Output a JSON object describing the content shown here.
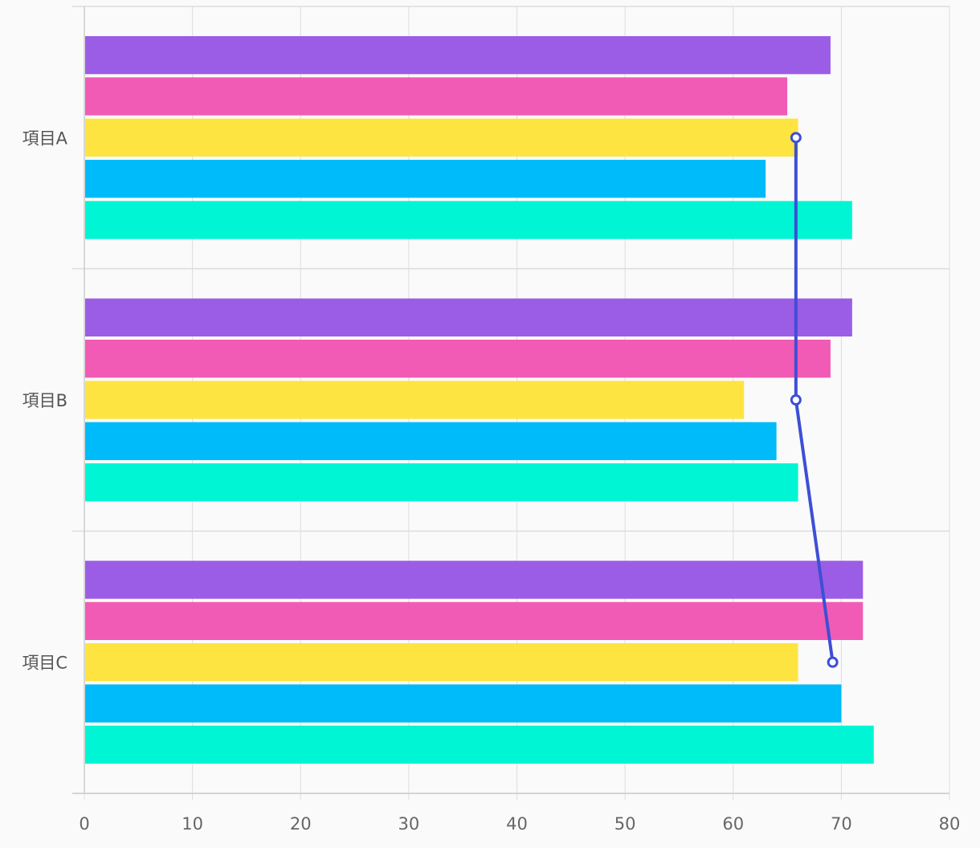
{
  "chart_data": {
    "type": "bar",
    "orientation": "horizontal",
    "categories": [
      "項目A",
      "項目B",
      "項目C"
    ],
    "series": [
      {
        "color": "#9b5de5",
        "values": [
          69,
          71,
          72
        ]
      },
      {
        "color": "#f15bb5",
        "values": [
          65,
          69,
          72
        ]
      },
      {
        "color": "#fee440",
        "values": [
          66,
          61,
          66
        ]
      },
      {
        "color": "#00bbf9",
        "values": [
          63,
          64,
          70
        ]
      },
      {
        "color": "#00f5d4",
        "values": [
          71,
          66,
          73
        ]
      }
    ],
    "line_series": {
      "color": "#3d4fd6",
      "values": [
        65.8,
        65.8,
        69.2
      ]
    },
    "xlim": [
      0,
      80
    ],
    "xticks": [
      "0",
      "10",
      "20",
      "30",
      "40",
      "50",
      "60",
      "70",
      "80"
    ],
    "grid": true,
    "legend": "none"
  }
}
